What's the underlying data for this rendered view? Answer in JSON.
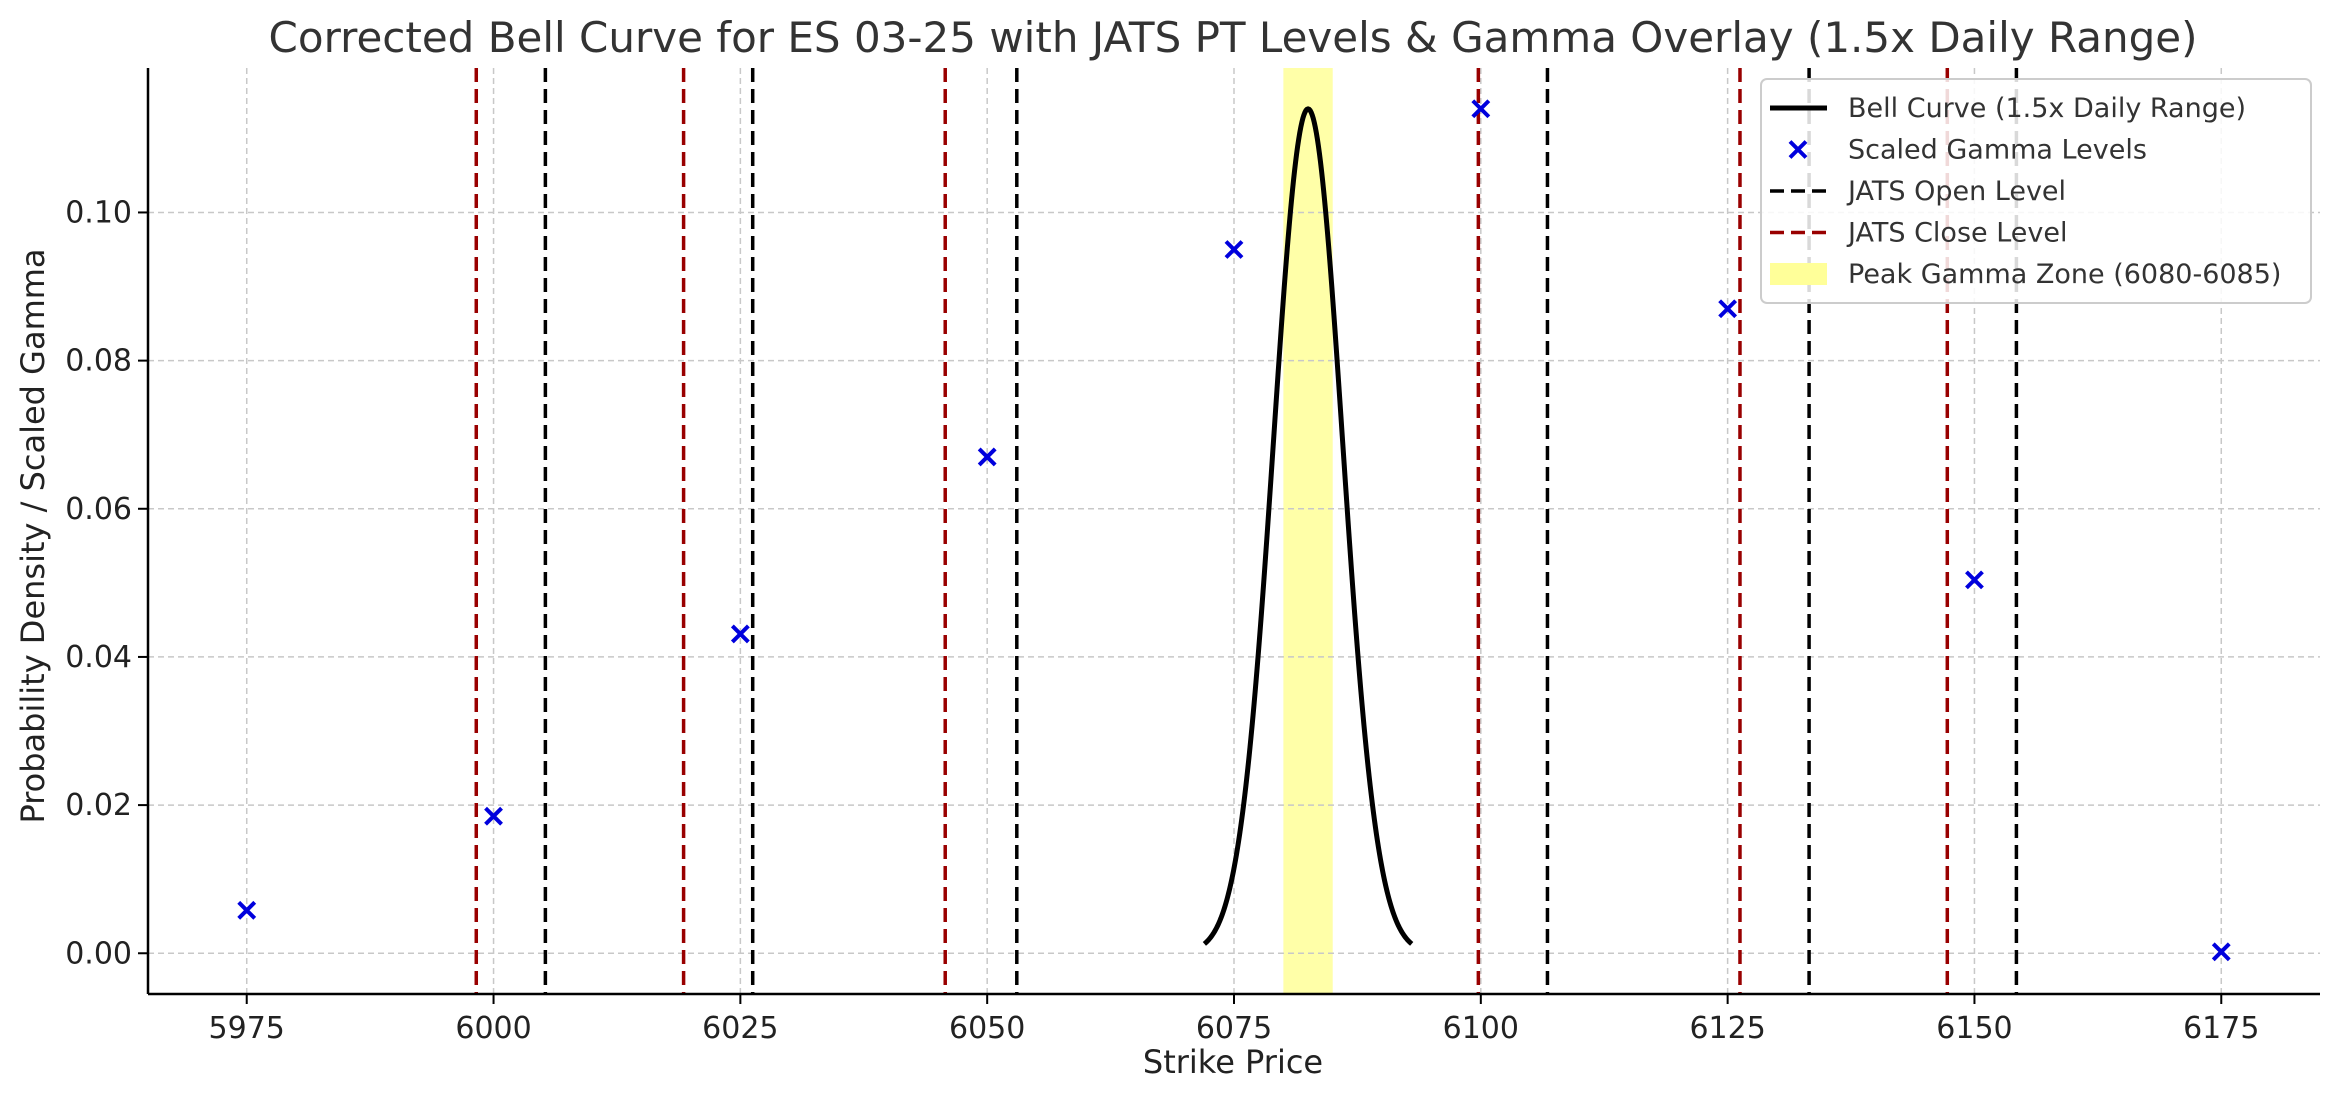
{
  "chart_data": {
    "type": "line",
    "title": "Corrected Bell Curve for ES 03-25 with JATS PT Levels & Gamma Overlay (1.5x Daily Range)",
    "xlabel": "Strike Price",
    "ylabel": "Probability Density / Scaled Gamma",
    "xlim": [
      5965,
      6185
    ],
    "ylim": [
      -0.0055,
      0.1195
    ],
    "xticks": [
      5975,
      6000,
      6025,
      6050,
      6075,
      6100,
      6125,
      6150,
      6175
    ],
    "xtick_labels": [
      "5975",
      "6000",
      "6025",
      "6050",
      "6075",
      "6100",
      "6125",
      "6150",
      "6175"
    ],
    "yticks": [
      0.0,
      0.02,
      0.04,
      0.06,
      0.08,
      0.1
    ],
    "ytick_labels": [
      "0.00",
      "0.02",
      "0.04",
      "0.06",
      "0.08",
      "0.10"
    ],
    "grid": true,
    "legend_position": "top-right",
    "bell_curve": {
      "name": "Bell Curve (1.5x Daily Range)",
      "mean": 6082.5,
      "std": 3.5,
      "x_start": 6072,
      "x_end": 6093,
      "color": "#000000"
    },
    "scatter": {
      "name": "Scaled Gamma Levels",
      "color": "#0000dd",
      "points": [
        {
          "x": 5975,
          "y": 0.0058
        },
        {
          "x": 6000,
          "y": 0.0185
        },
        {
          "x": 6025,
          "y": 0.0431
        },
        {
          "x": 6050,
          "y": 0.067
        },
        {
          "x": 6075,
          "y": 0.095
        },
        {
          "x": 6100,
          "y": 0.114
        },
        {
          "x": 6125,
          "y": 0.087
        },
        {
          "x": 6150,
          "y": 0.0504
        },
        {
          "x": 6175,
          "y": 0.0002
        }
      ]
    },
    "open_levels": {
      "name": "JATS Open Level",
      "color": "#000000",
      "x": [
        6005.25,
        6026.25,
        6053.0,
        6106.75,
        6133.25,
        6154.25
      ]
    },
    "close_levels": {
      "name": "JATS Close Level",
      "color": "#990000",
      "x": [
        5998.25,
        6019.25,
        6045.75,
        6099.75,
        6126.25,
        6147.25
      ]
    },
    "peak_zone": {
      "name": "Peak Gamma Zone (6080-6085)",
      "x0": 6080,
      "x1": 6085,
      "color": "#ffff99"
    }
  }
}
